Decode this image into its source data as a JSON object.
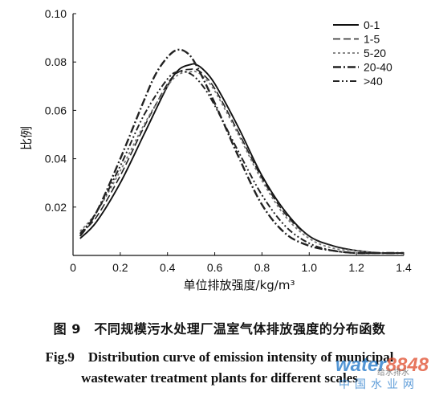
{
  "chart_data": {
    "type": "line",
    "title": "",
    "xlabel": "单位排放强度/kg/m³",
    "ylabel": "比例",
    "xlim": [
      0,
      1.4
    ],
    "ylim": [
      0,
      0.1
    ],
    "xticks": [
      "0",
      "0.2",
      "0.4",
      "0.6",
      "0.8",
      "1.0",
      "1.2",
      "1.4"
    ],
    "yticks": [
      "0.02",
      "0.04",
      "0.06",
      "0.08",
      "0.10"
    ],
    "grid": false,
    "legend_position": "top-right",
    "series": [
      {
        "name": "0-1",
        "style": "solid",
        "x": [
          0.03,
          0.1,
          0.2,
          0.3,
          0.4,
          0.45,
          0.5,
          0.52,
          0.55,
          0.6,
          0.7,
          0.8,
          0.9,
          1.0,
          1.1,
          1.2,
          1.3,
          1.4
        ],
        "y": [
          0.007,
          0.014,
          0.03,
          0.05,
          0.07,
          0.077,
          0.079,
          0.079,
          0.077,
          0.071,
          0.053,
          0.033,
          0.018,
          0.008,
          0.004,
          0.002,
          0.001,
          0.001
        ]
      },
      {
        "name": "1-5",
        "style": "dashed",
        "x": [
          0.03,
          0.1,
          0.2,
          0.3,
          0.4,
          0.45,
          0.5,
          0.52,
          0.55,
          0.6,
          0.7,
          0.8,
          0.9,
          1.0,
          1.1,
          1.2,
          1.3,
          1.4
        ],
        "y": [
          0.009,
          0.016,
          0.033,
          0.053,
          0.071,
          0.076,
          0.077,
          0.077,
          0.075,
          0.069,
          0.051,
          0.032,
          0.017,
          0.008,
          0.004,
          0.002,
          0.001,
          0.001
        ]
      },
      {
        "name": "5-20",
        "style": "dotted",
        "x": [
          0.03,
          0.1,
          0.2,
          0.3,
          0.4,
          0.45,
          0.5,
          0.52,
          0.55,
          0.6,
          0.7,
          0.8,
          0.9,
          1.0,
          1.1,
          1.2,
          1.3,
          1.4
        ],
        "y": [
          0.01,
          0.018,
          0.035,
          0.054,
          0.07,
          0.075,
          0.076,
          0.076,
          0.074,
          0.068,
          0.05,
          0.031,
          0.016,
          0.007,
          0.003,
          0.002,
          0.001,
          0.001
        ]
      },
      {
        "name": "20-40",
        "style": "dashdot",
        "x": [
          0.03,
          0.1,
          0.2,
          0.3,
          0.35,
          0.4,
          0.44,
          0.48,
          0.52,
          0.6,
          0.7,
          0.8,
          0.9,
          1.0,
          1.1,
          1.2,
          1.3,
          1.4
        ],
        "y": [
          0.008,
          0.018,
          0.04,
          0.064,
          0.075,
          0.082,
          0.085,
          0.084,
          0.079,
          0.063,
          0.041,
          0.021,
          0.009,
          0.004,
          0.002,
          0.001,
          0.001,
          0.001
        ]
      },
      {
        "name": ">40",
        "style": "dashdotdot",
        "x": [
          0.03,
          0.1,
          0.2,
          0.3,
          0.4,
          0.45,
          0.5,
          0.55,
          0.6,
          0.7,
          0.8,
          0.9,
          1.0,
          1.1,
          1.2,
          1.3,
          1.4
        ],
        "y": [
          0.009,
          0.018,
          0.037,
          0.058,
          0.073,
          0.076,
          0.075,
          0.07,
          0.062,
          0.043,
          0.025,
          0.012,
          0.005,
          0.002,
          0.001,
          0.001,
          0.001
        ]
      }
    ]
  },
  "caption": {
    "cn": "图 9　不同规模污水处理厂温室气体排放强度的分布函数",
    "en_line1": "Fig.9　Distribution curve of emission intensity of municipal",
    "en_line2": "wastewater treatment plants for different scales"
  },
  "watermark": {
    "brand_a": "water",
    "brand_b": "8848",
    "sub": "中国水业网",
    "tag": "给水排水"
  }
}
